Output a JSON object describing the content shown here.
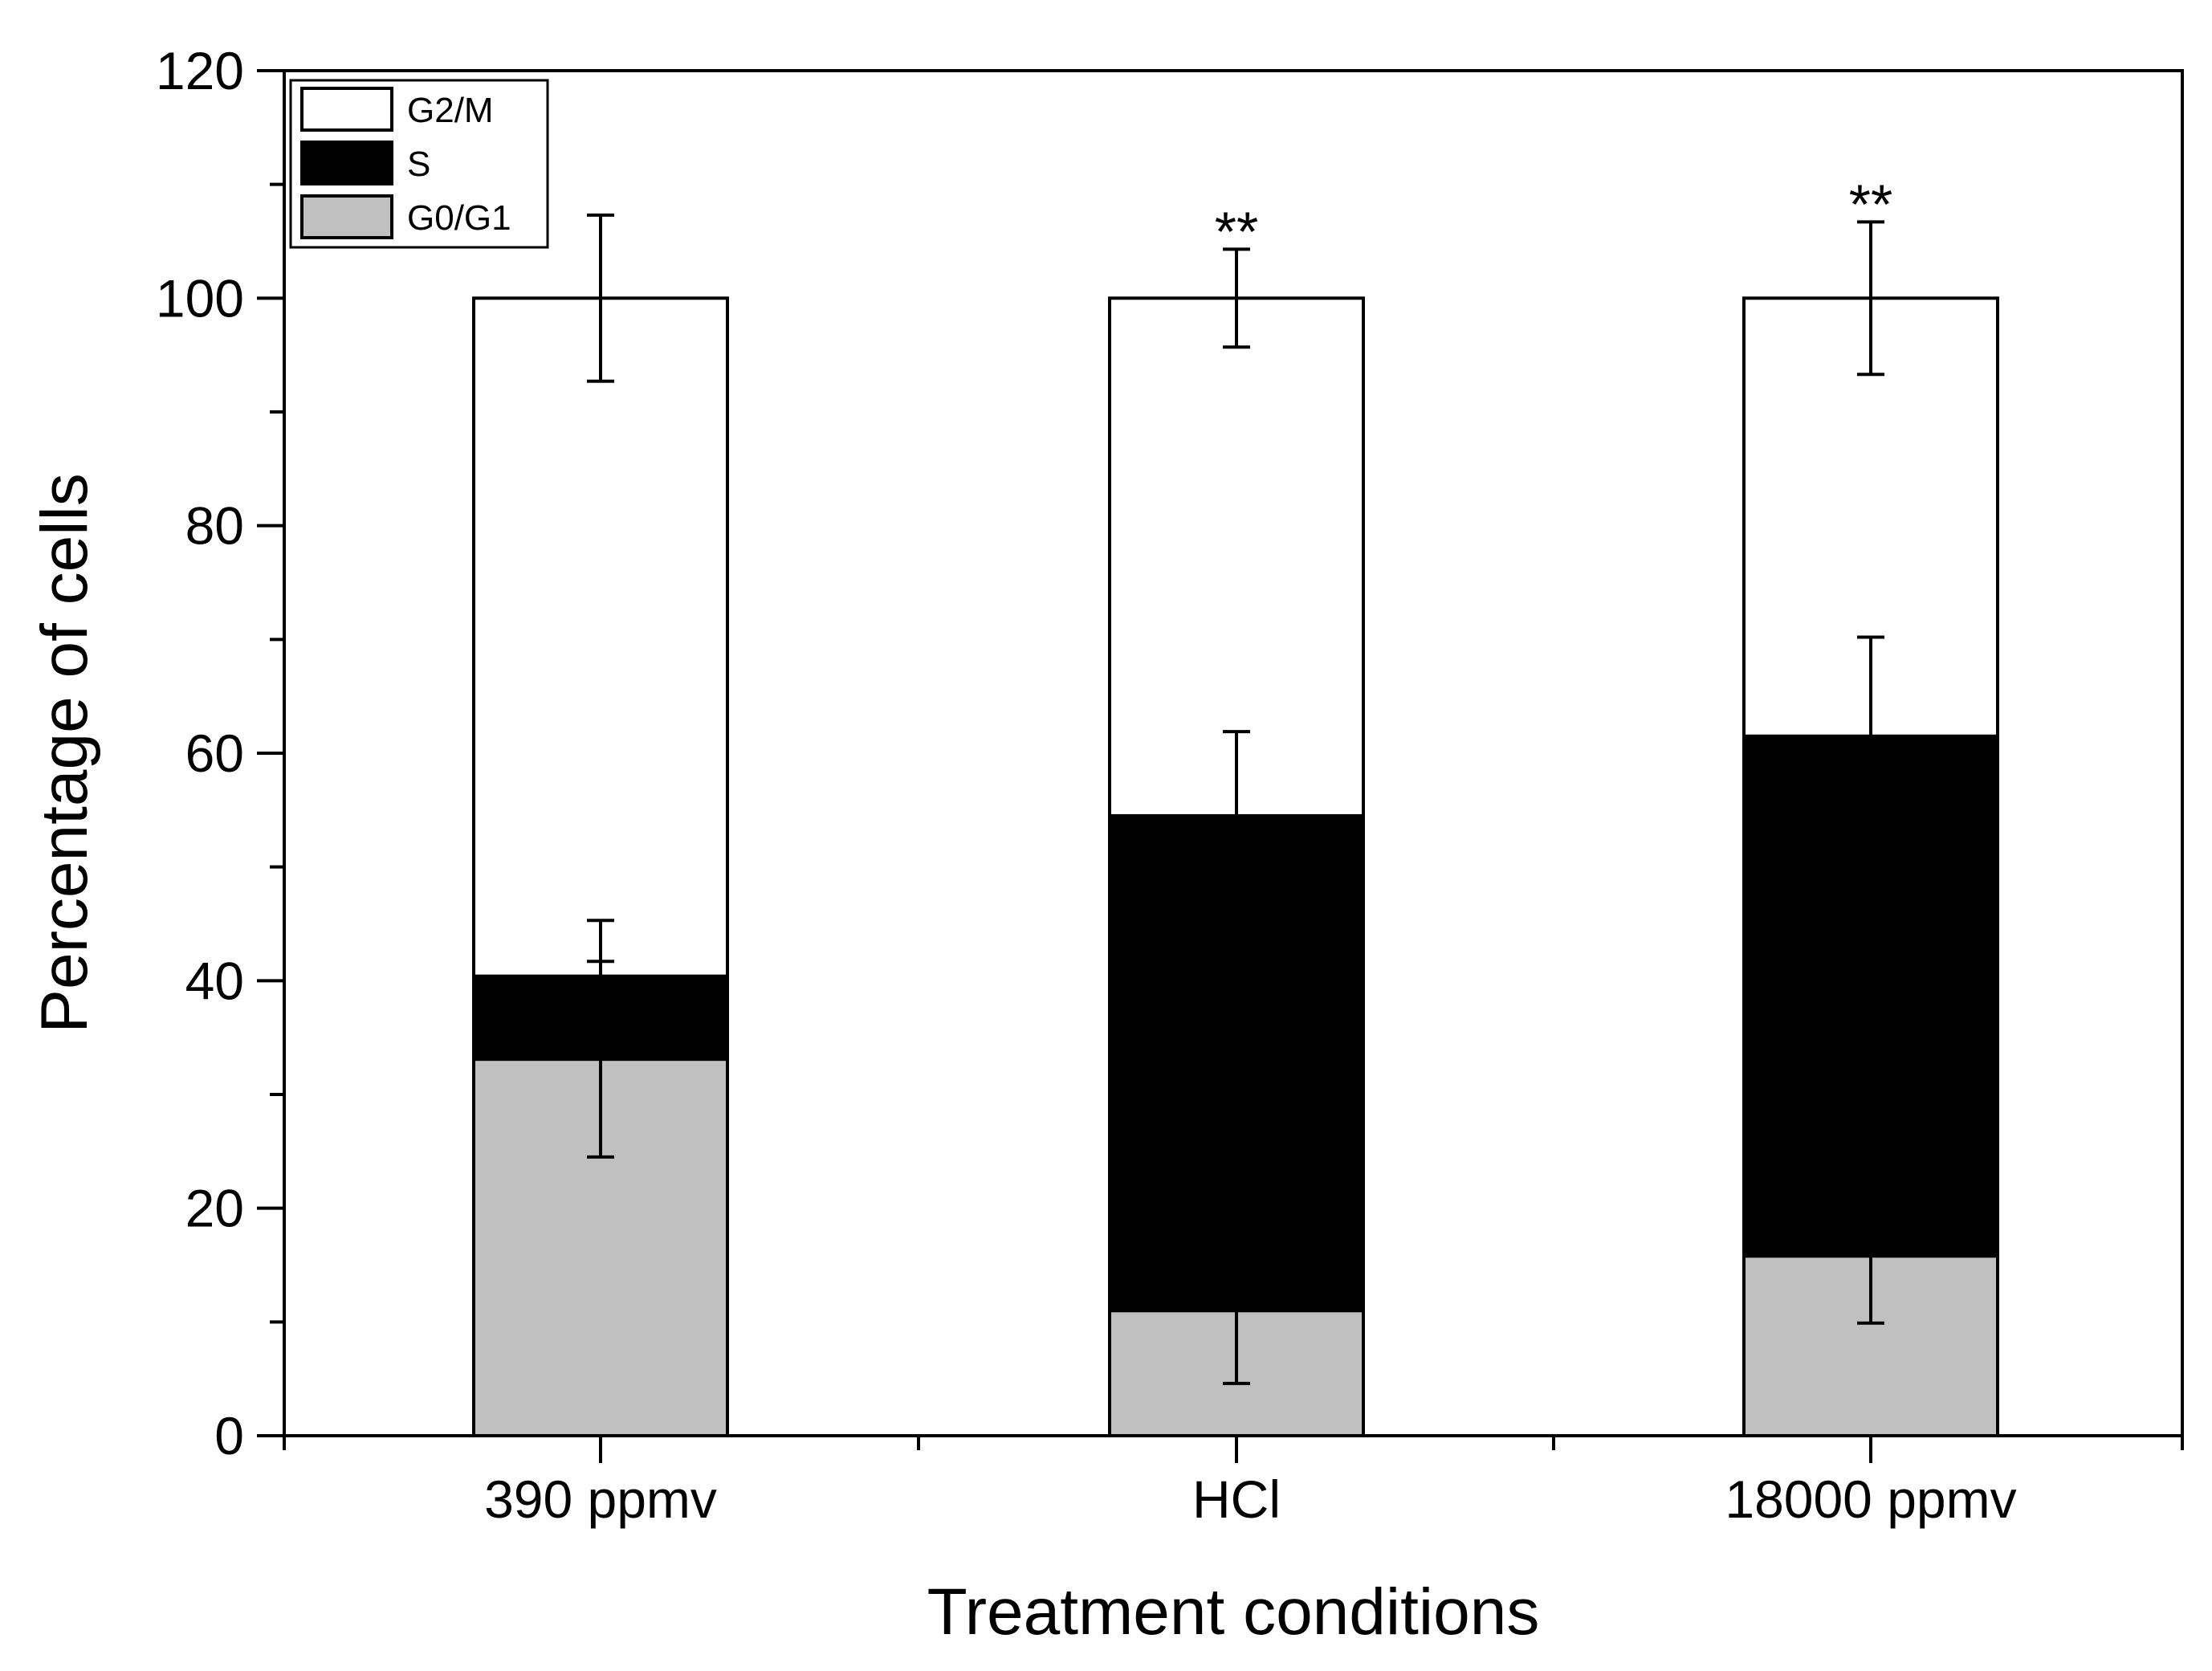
{
  "chart_data": {
    "type": "bar",
    "stacked": true,
    "categories": [
      "390 ppmv",
      "HCl",
      "18000 ppmv"
    ],
    "xlabel": "Treatment conditions",
    "ylabel": "Percentage of cells",
    "ylim": [
      0,
      120
    ],
    "yticks": [
      0,
      20,
      40,
      60,
      80,
      100,
      120
    ],
    "yticks_minor": [
      10,
      30,
      50,
      70,
      90,
      110
    ],
    "grid": false,
    "legend_position": "top-left",
    "series": [
      {
        "name": "G0/G1",
        "color": "#c0c0c0",
        "values": [
          33.1,
          11.0,
          15.8
        ],
        "errors": [
          8.6,
          6.4,
          5.9
        ]
      },
      {
        "name": "S",
        "color": "#000000",
        "values": [
          7.3,
          43.5,
          45.7
        ],
        "errors": [
          4.9,
          7.4,
          8.7
        ]
      },
      {
        "name": "G2/M",
        "color": "#ffffff",
        "values": [
          59.6,
          45.5,
          38.5
        ],
        "errors": [
          7.3,
          4.3,
          6.7
        ]
      }
    ],
    "legend_order": [
      "G2/M",
      "S",
      "G0/G1"
    ],
    "annotations": [
      "",
      "**",
      "**"
    ]
  }
}
